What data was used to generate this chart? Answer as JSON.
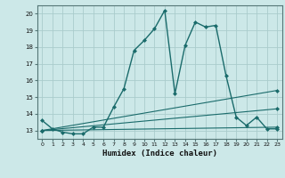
{
  "xlabel": "Humidex (Indice chaleur)",
  "bg_color": "#cce8e8",
  "grid_color": "#aacccc",
  "line_color": "#1a6b6b",
  "ylim": [
    12.5,
    20.5
  ],
  "xlim": [
    -0.5,
    23.5
  ],
  "yticks": [
    13,
    14,
    15,
    16,
    17,
    18,
    19,
    20
  ],
  "xticks": [
    0,
    1,
    2,
    3,
    4,
    5,
    6,
    7,
    8,
    9,
    10,
    11,
    12,
    13,
    14,
    15,
    16,
    17,
    18,
    19,
    20,
    21,
    22,
    23
  ],
  "series": [
    {
      "x": [
        0,
        1,
        2,
        3,
        4,
        5,
        6,
        7,
        8,
        9,
        10,
        11,
        12,
        13,
        14,
        15,
        16,
        17,
        18,
        19,
        20,
        21,
        22,
        23
      ],
      "y": [
        13.6,
        13.1,
        12.9,
        12.8,
        12.8,
        13.2,
        13.2,
        14.4,
        15.5,
        17.8,
        18.4,
        19.1,
        20.2,
        15.2,
        18.1,
        19.5,
        19.2,
        19.3,
        16.3,
        13.8,
        13.3,
        13.8,
        13.1,
        13.1
      ],
      "lw": 1.0
    },
    {
      "x": [
        0,
        23
      ],
      "y": [
        13.0,
        13.2
      ],
      "lw": 0.8
    },
    {
      "x": [
        0,
        23
      ],
      "y": [
        13.0,
        15.4
      ],
      "lw": 0.8
    },
    {
      "x": [
        0,
        23
      ],
      "y": [
        13.0,
        14.3
      ],
      "lw": 0.8
    }
  ]
}
